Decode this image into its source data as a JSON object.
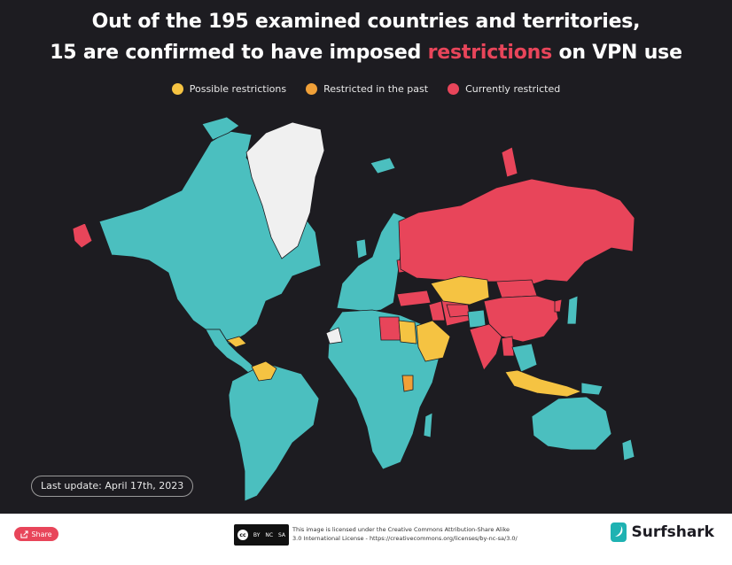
{
  "title": {
    "line1": "Out of the 195 examined countries and territories,",
    "line2_before": "15 are confirmed to have imposed ",
    "line2_highlight": "restrictions",
    "line2_after": " on VPN use"
  },
  "legend": [
    {
      "label": "Possible restrictions",
      "color": "#f5c342"
    },
    {
      "label": "Restricted in the past",
      "color": "#f0a038"
    },
    {
      "label": "Currently restricted",
      "color": "#e8455a"
    }
  ],
  "map": {
    "colors": {
      "no_restrictions": "#4bbfbf",
      "possible": "#f5c342",
      "past": "#f0a038",
      "current": "#e8455a",
      "no_data": "#f0f0f0",
      "background": "#1d1c21"
    },
    "regions": {
      "north_america": "no_restrictions",
      "greenland": "no_data",
      "south_america": "no_restrictions",
      "venezuela": "possible",
      "caribbean": "possible",
      "europe": "no_restrictions",
      "africa": "no_restrictions",
      "western_sahara": "no_data",
      "libya": "current",
      "egypt": "possible",
      "saudi_arabia": "possible",
      "uganda": "past",
      "russia": "current",
      "belarus": "current",
      "turkey": "current",
      "iran": "current",
      "iraq": "current",
      "kazakhstan": "possible",
      "turkmenistan": "current",
      "china": "current",
      "mongolia": "current",
      "north_korea": "current",
      "india": "current",
      "myanmar": "current",
      "indonesia": "possible",
      "australia": "no_restrictions"
    }
  },
  "last_update": "Last update: April 17th, 2023",
  "footer": {
    "share_label": "Share",
    "cc_badge_labels": [
      "BY",
      "NC",
      "SA"
    ],
    "license_line1": "This image is licensed under the Creative Commons Attribution-Share Alike",
    "license_line2": "3.0 International License - https://creativecommons.org/licenses/by-nc-sa/3.0/",
    "brand_name": "Surfshark"
  }
}
